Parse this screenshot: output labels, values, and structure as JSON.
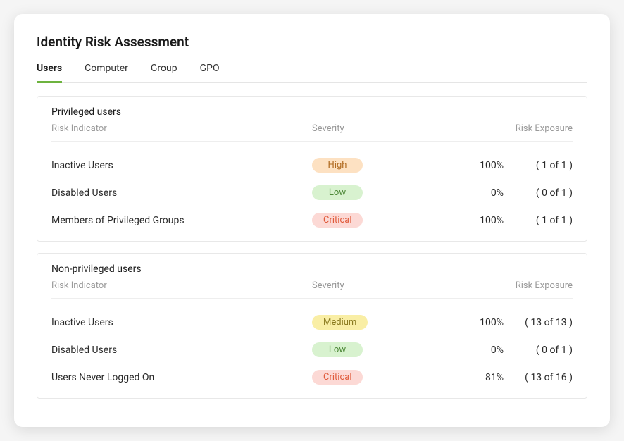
{
  "title": "Identity Risk Assessment",
  "tabs": [
    {
      "label": "Users",
      "active": true
    },
    {
      "label": "Computer",
      "active": false
    },
    {
      "label": "Group",
      "active": false
    },
    {
      "label": "GPO",
      "active": false
    }
  ],
  "colHeaders": {
    "indicator": "Risk Indicator",
    "severity": "Severity",
    "exposure": "Risk Exposure"
  },
  "severityStyles": {
    "High": {
      "bg": "#fde1c2",
      "fg": "#b06a1f"
    },
    "Low": {
      "bg": "#d8f2cf",
      "fg": "#4f8a3a"
    },
    "Critical": {
      "bg": "#fcd9d5",
      "fg": "#e05a3a"
    },
    "Medium": {
      "bg": "#f9eea5",
      "fg": "#8a7a1f"
    }
  },
  "panels": [
    {
      "title": "Privileged users",
      "rows": [
        {
          "indicator": "Inactive Users",
          "severity": "High",
          "pct": "100%",
          "count": "( 1 of 1 )"
        },
        {
          "indicator": "Disabled Users",
          "severity": "Low",
          "pct": "0%",
          "count": "( 0 of 1 )"
        },
        {
          "indicator": "Members of Privileged Groups",
          "severity": "Critical",
          "pct": "100%",
          "count": "( 1 of 1 )"
        }
      ]
    },
    {
      "title": "Non-privileged users",
      "rows": [
        {
          "indicator": "Inactive Users",
          "severity": "Medium",
          "pct": "100%",
          "count": "( 13 of 13 )"
        },
        {
          "indicator": "Disabled Users",
          "severity": "Low",
          "pct": "0%",
          "count": "( 0 of 1 )"
        },
        {
          "indicator": "Users Never Logged On",
          "severity": "Critical",
          "pct": "81%",
          "count": "( 13 of 16 )"
        }
      ]
    }
  ]
}
